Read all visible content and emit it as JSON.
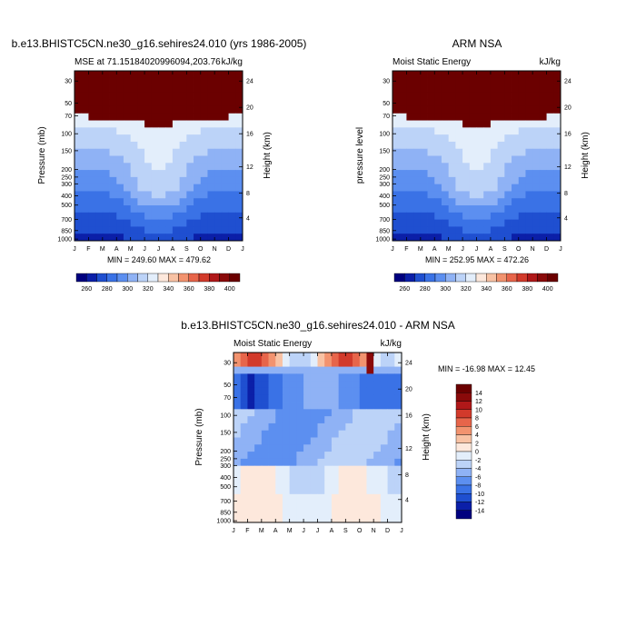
{
  "colors": {
    "palette": [
      "#00007f",
      "#0b1fa8",
      "#1f4fd0",
      "#3a72e6",
      "#5c8ff0",
      "#8fb2f5",
      "#bcd3f8",
      "#e3eefb",
      "#fde8dc",
      "#f8c2a4",
      "#f2936f",
      "#e7654a",
      "#d23a2b",
      "#b01819",
      "#8a0a0a",
      "#6b0000"
    ]
  },
  "chart_data": [
    {
      "type": "heatmap",
      "title": "b.e13.BHISTC5CN.ne30_g16.sehires24.010 (yrs 1986-2005)",
      "subtitle_left": "MSE at 71.15184020996094,203.76",
      "subtitle_right": "kJ/kg",
      "ylabel": "Pressure (mb)",
      "ylabel_right": "Height (km)",
      "x_ticklabels": [
        "J",
        "F",
        "M",
        "A",
        "M",
        "J",
        "J",
        "A",
        "S",
        "O",
        "N",
        "D",
        "J"
      ],
      "y_ticklabels": [
        "30",
        "50",
        "70",
        "100",
        "150",
        "200",
        "250",
        "300",
        "400",
        "500",
        "700",
        "850",
        "1000"
      ],
      "y_right_ticklabels": [
        "24",
        "20",
        "16",
        "12",
        "8",
        "4"
      ],
      "stats": "MIN = 249.60 MAX = 479.62",
      "colorbar_labels": [
        "260",
        "280",
        "300",
        "320",
        "340",
        "360",
        "380",
        "400"
      ]
    },
    {
      "type": "heatmap",
      "title": "ARM NSA",
      "subtitle_left": "Moist Static Energy",
      "subtitle_right": "kJ/kg",
      "ylabel": "pressure level",
      "ylabel_right": "Height (km)",
      "x_ticklabels": [
        "J",
        "F",
        "M",
        "A",
        "M",
        "J",
        "J",
        "A",
        "S",
        "O",
        "N",
        "D",
        "J"
      ],
      "y_ticklabels": [
        "30",
        "50",
        "70",
        "100",
        "150",
        "200",
        "250",
        "300",
        "400",
        "500",
        "700",
        "850",
        "1000"
      ],
      "y_right_ticklabels": [
        "24",
        "20",
        "16",
        "12",
        "8",
        "4"
      ],
      "stats": "MIN = 252.95 MAX = 472.26",
      "colorbar_labels": [
        "260",
        "280",
        "300",
        "320",
        "340",
        "360",
        "380",
        "400"
      ]
    },
    {
      "type": "heatmap",
      "title": "b.e13.BHISTC5CN.ne30_g16.sehires24.010 - ARM NSA",
      "subtitle_left": "Moist Static Energy",
      "subtitle_right": "kJ/kg",
      "ylabel": "Pressure (mb)",
      "ylabel_right": "Height (km)",
      "x_ticklabels": [
        "J",
        "F",
        "M",
        "A",
        "M",
        "J",
        "J",
        "A",
        "S",
        "O",
        "N",
        "D",
        "J"
      ],
      "y_ticklabels": [
        "30",
        "50",
        "70",
        "100",
        "150",
        "200",
        "250",
        "300",
        "400",
        "500",
        "700",
        "850",
        "1000"
      ],
      "y_right_ticklabels": [
        "24",
        "20",
        "16",
        "12",
        "8",
        "4"
      ],
      "stats": "MIN = -16.98 MAX =  12.45",
      "colorbar_labels": [
        "14",
        "12",
        "10",
        "8",
        "6",
        "4",
        "2",
        "0",
        "-2",
        "-4",
        "-6",
        "-8",
        "-10",
        "-12",
        "-14"
      ]
    }
  ]
}
